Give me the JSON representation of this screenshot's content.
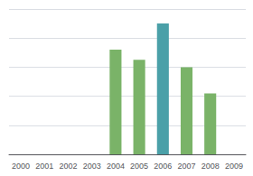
{
  "chart_data": {
    "type": "bar",
    "categories": [
      "2000",
      "2001",
      "2002",
      "2003",
      "2004",
      "2005",
      "2006",
      "2007",
      "2008",
      "2009"
    ],
    "values": [
      0,
      0,
      0,
      0,
      72,
      65,
      90,
      60,
      42,
      0
    ],
    "colors": [
      "#7ab368",
      "#7ab368",
      "#7ab368",
      "#7ab368",
      "#7ab368",
      "#7ab368",
      "#4aa0a8",
      "#7ab368",
      "#7ab368",
      "#7ab368"
    ],
    "ylim": [
      0,
      100
    ],
    "yticks": [
      20,
      40,
      60,
      80,
      100
    ],
    "grid": true,
    "tick_labels": "x"
  }
}
